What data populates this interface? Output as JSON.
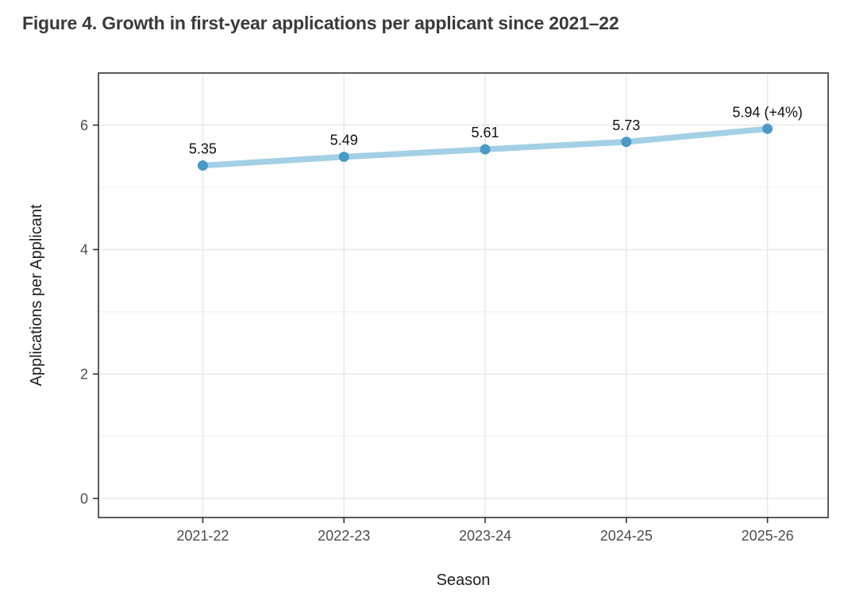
{
  "title": "Figure 4. Growth in first-year applications per applicant since 2021–22",
  "chart_data": {
    "type": "line",
    "title": "Figure 4. Growth in first-year applications per applicant since 2021–22",
    "xlabel": "Season",
    "ylabel": "Applications per Applicant",
    "categories": [
      "2021-22",
      "2022-23",
      "2023-24",
      "2024-25",
      "2025-26"
    ],
    "series": [
      {
        "name": "Applications per Applicant",
        "values": [
          5.35,
          5.49,
          5.61,
          5.73,
          5.94
        ]
      }
    ],
    "point_labels": [
      "5.35",
      "5.49",
      "5.61",
      "5.73",
      "5.94 (+4%)"
    ],
    "y_tick_labels": [
      "0",
      "2",
      "4",
      "6"
    ],
    "y_ticks": [
      0,
      2,
      4,
      6
    ],
    "y_minor_ticks": [
      1,
      3,
      5
    ],
    "ylim": [
      -0.3,
      6.85
    ],
    "grid": true,
    "legend_position": "none",
    "colors": {
      "line": "#a3d0e4",
      "point": "#4a9ac8",
      "grid_major": "#e7e7e7",
      "grid_minor": "#efefef",
      "panel_border": "#333333",
      "tick_mark": "#333333",
      "axis_text": "#4d4d4d",
      "axis_title": "#1f1f1f",
      "point_label_text": "#111111",
      "title_text": "#3a3a3a",
      "background": "#ffffff"
    }
  }
}
